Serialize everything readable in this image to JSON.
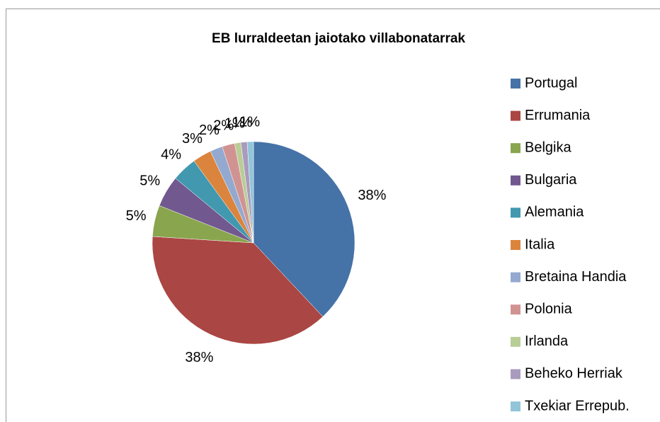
{
  "chart_data": {
    "type": "pie",
    "title": "EB lurraldeetan jaiotako villabonatarrak",
    "categories": [
      "Portugal",
      "Errumania",
      "Belgika",
      "Bulgaria",
      "Alemania",
      "Italia",
      "Bretaina Handia",
      "Polonia",
      "Irlanda",
      "Beheko Herriak",
      "Txekiar Errepub."
    ],
    "values": [
      38,
      38,
      5,
      5,
      4,
      3,
      2,
      2,
      1,
      1,
      1
    ],
    "value_labels": [
      "38%",
      "38%",
      "5%",
      "5%",
      "4%",
      "3%",
      "2%",
      "2%",
      "1%",
      "1%",
      "1%"
    ],
    "colors": [
      "#4572a7",
      "#aa4643",
      "#89a54e",
      "#71588f",
      "#4198af",
      "#db843d",
      "#93a9cf",
      "#d19392",
      "#b9cd96",
      "#a99bbd",
      "#92c5d8"
    ],
    "legend": "right"
  }
}
